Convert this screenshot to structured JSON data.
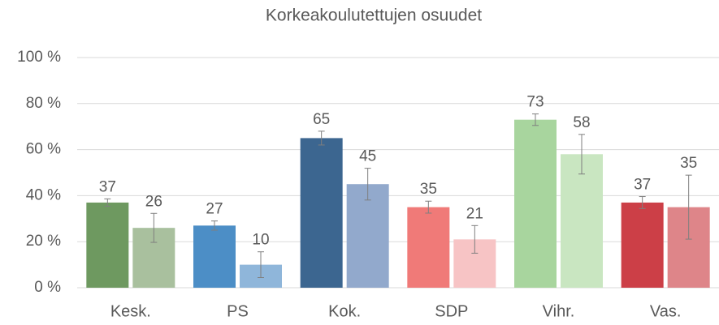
{
  "chart_data": {
    "type": "bar",
    "title": "Korkeakoulutettujen osuudet",
    "categories": [
      "Kesk.",
      "PS",
      "Kok.",
      "SDP",
      "Vihr.",
      "Vas."
    ],
    "series": [
      {
        "colors": [
          "#6e9960",
          "#4c8ec6",
          "#3c6690",
          "#f07a78",
          "#a8d59e",
          "#cc3f47"
        ],
        "values": [
          37,
          27,
          65,
          35,
          73,
          37
        ],
        "errors": [
          1.6,
          2,
          3,
          2.6,
          2.5,
          2.6
        ]
      },
      {
        "colors": [
          "#a9c09e",
          "#8fb6da",
          "#92a9cc",
          "#f7c4c5",
          "#c9e6c1",
          "#de8589"
        ],
        "values": [
          26,
          10,
          45,
          21,
          58,
          35
        ],
        "errors": [
          6.3,
          5.6,
          6.9,
          6,
          8.6,
          13.9
        ]
      }
    ],
    "ylim": [
      0,
      100
    ],
    "yticks": [
      {
        "value": 0,
        "label": "0 %"
      },
      {
        "value": 20,
        "label": "20 %"
      },
      {
        "value": 40,
        "label": "40 %"
      },
      {
        "value": 60,
        "label": "60 %"
      },
      {
        "value": 80,
        "label": "80 %"
      },
      {
        "value": 100,
        "label": "100 %"
      }
    ],
    "grid": true,
    "error_color": "#7f7f7f"
  }
}
